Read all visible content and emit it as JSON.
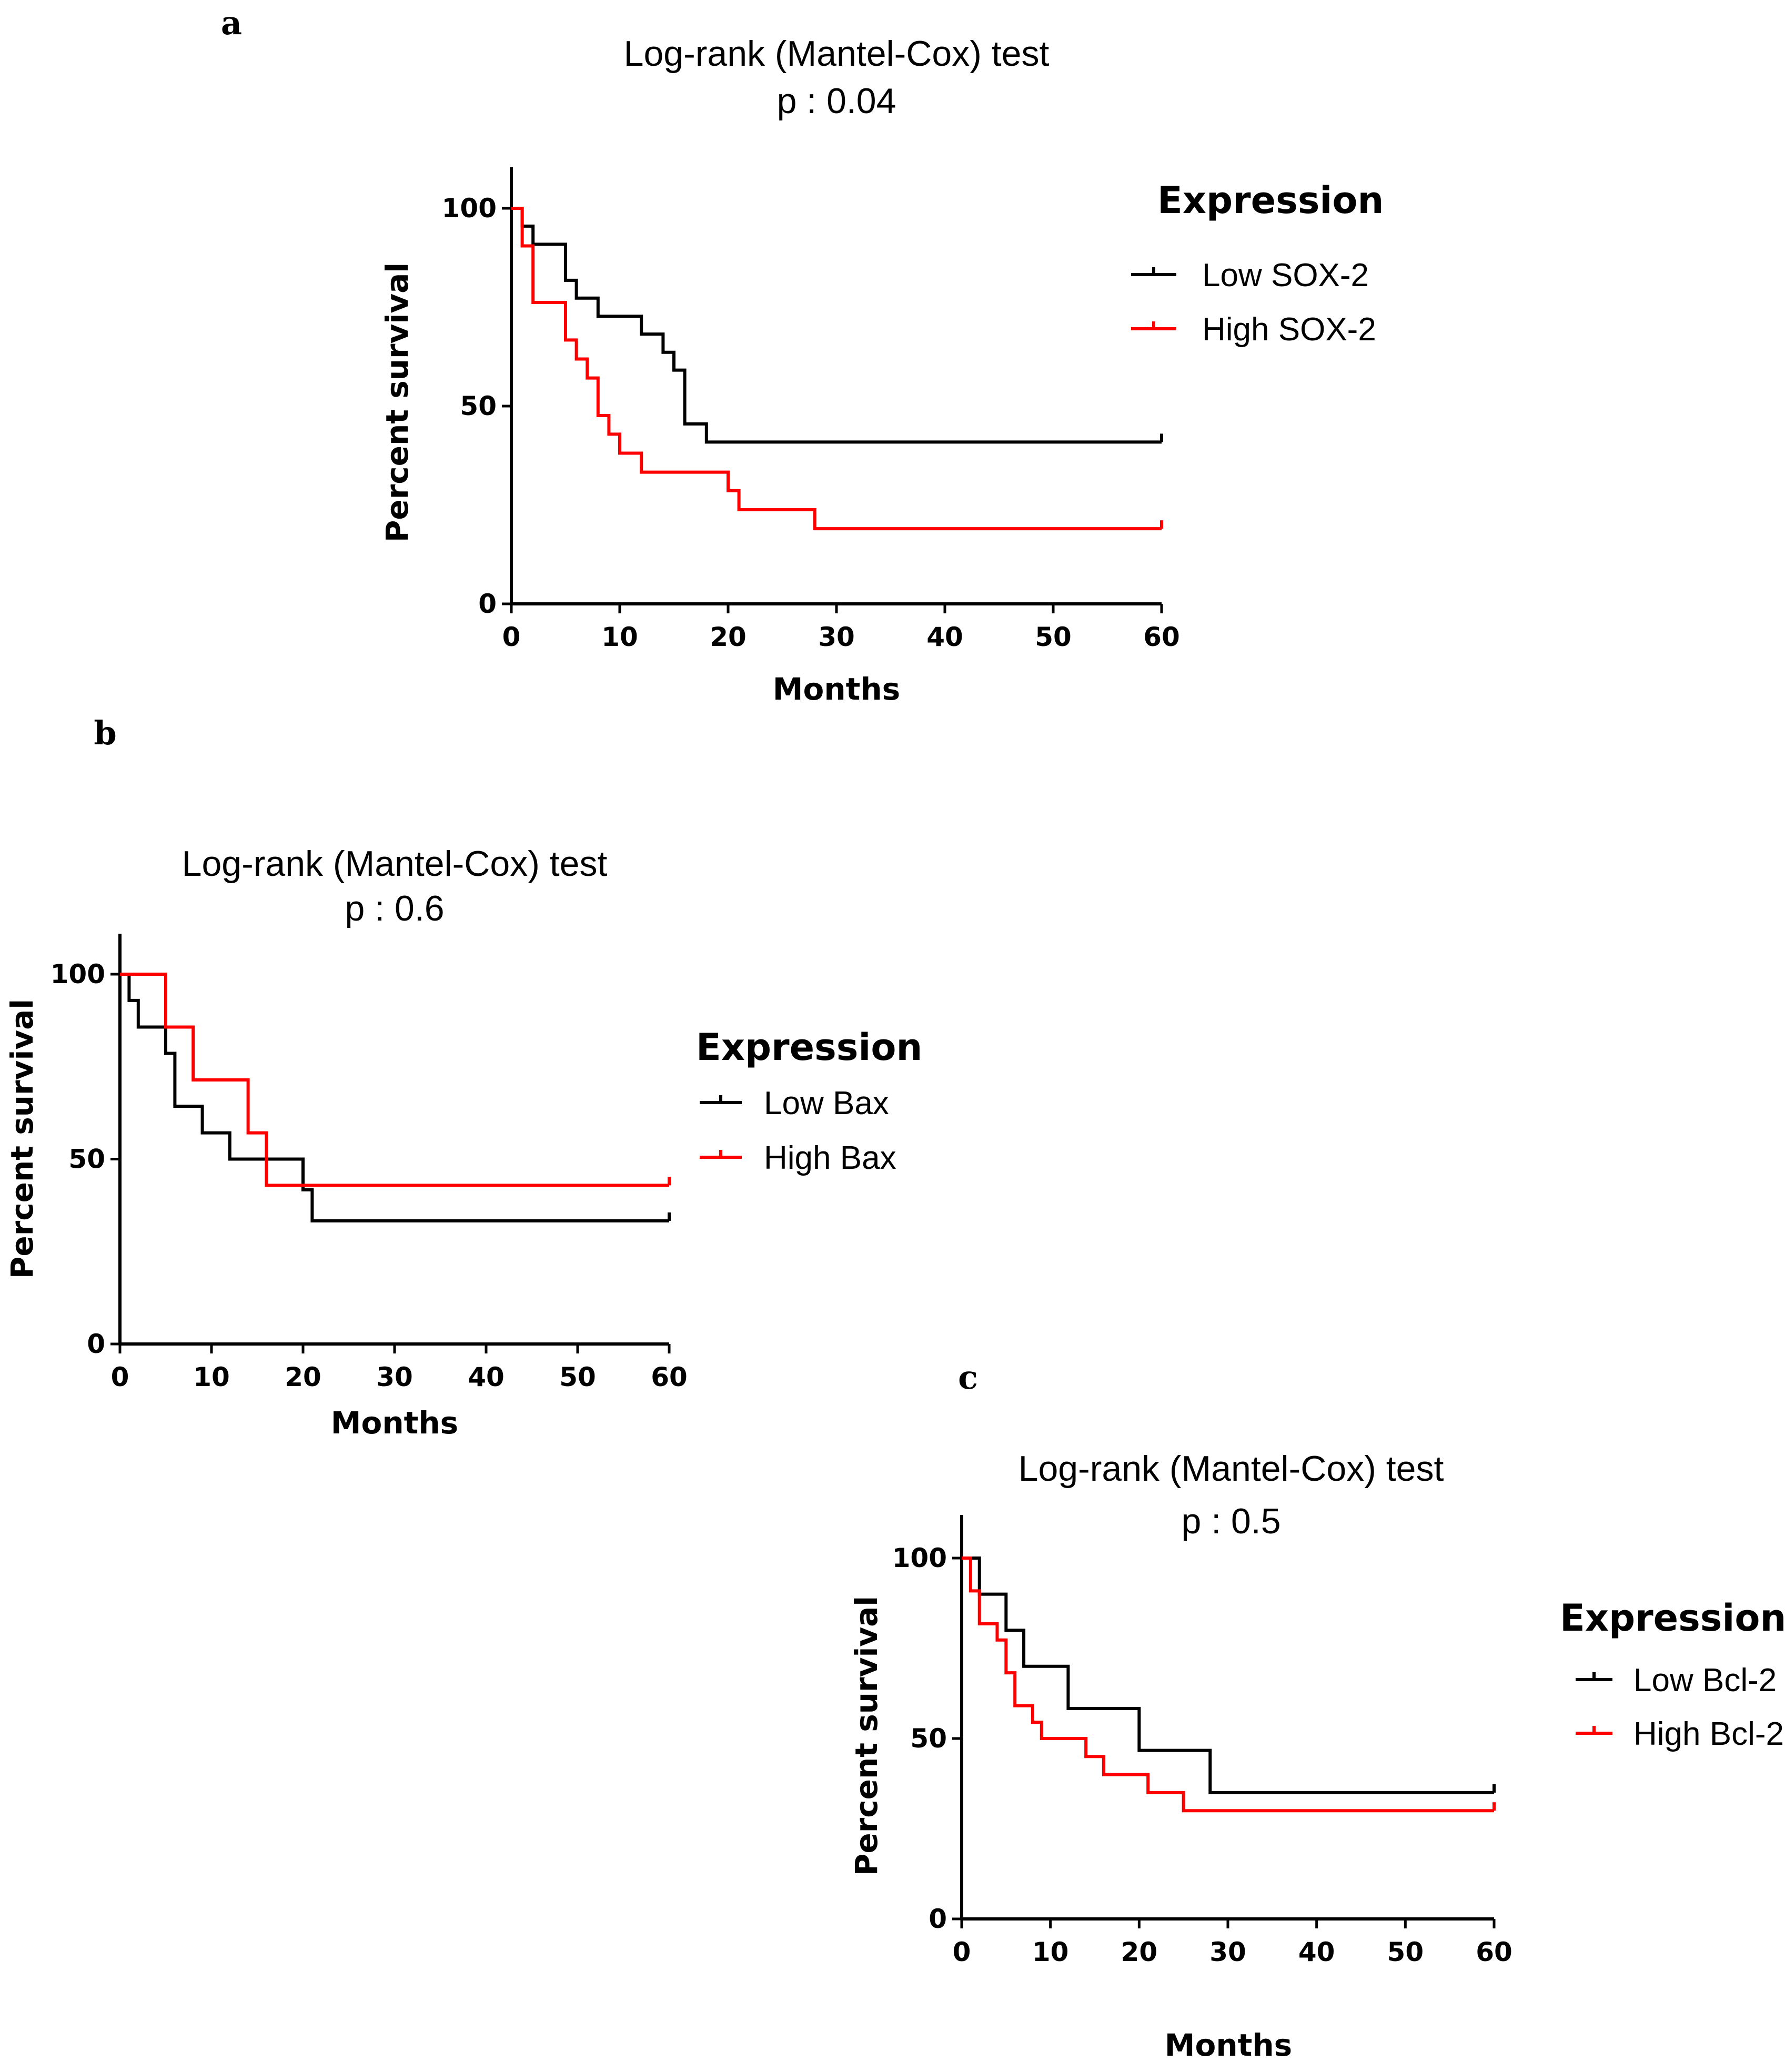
{
  "panels": [
    {
      "letter": "a",
      "title": "Log-rank (Mantel-Cox) test",
      "p_value": "p : 0.04",
      "legend_title": "Expression"
    },
    {
      "letter": "b",
      "title": "Log-rank (Mantel-Cox) test",
      "p_value": "p : 0.6",
      "legend_title": "Expression"
    },
    {
      "letter": "c",
      "title": "Log-rank (Mantel-Cox) test",
      "p_value": "p : 0.5",
      "legend_title": "Expression"
    }
  ],
  "colors": {
    "low": "#000000",
    "high": "#ff0000",
    "axis": "#000000"
  },
  "chart_data": [
    {
      "type": "line",
      "subtype": "kaplan-meier",
      "title": "Log-rank (Mantel-Cox) test",
      "subtitle": "p : 0.04",
      "xlabel": "Months",
      "ylabel": "Percent survival",
      "xlim": [
        0,
        60
      ],
      "ylim": [
        0,
        110
      ],
      "xticks": [
        "0",
        "10",
        "20",
        "30",
        "40",
        "50",
        "60"
      ],
      "yticks": [
        "0",
        "50",
        "100"
      ],
      "xtick_values": [
        0,
        10,
        20,
        30,
        40,
        50,
        60
      ],
      "ytick_values": [
        0,
        50,
        100
      ],
      "legend_title": "Expression",
      "legend_position": "right",
      "series": [
        {
          "name": "Low SOX-2",
          "color_key": "low",
          "steps": [
            [
              0,
              100
            ],
            [
              1,
              95.5
            ],
            [
              2,
              90.9
            ],
            [
              5,
              81.8
            ],
            [
              6,
              77.3
            ],
            [
              8,
              72.7
            ],
            [
              12,
              68.2
            ],
            [
              14,
              63.6
            ],
            [
              15,
              59.1
            ],
            [
              16,
              45.5
            ],
            [
              18,
              40.9
            ],
            [
              60,
              40.9
            ]
          ]
        },
        {
          "name": "High SOX-2",
          "color_key": "high",
          "steps": [
            [
              0,
              100
            ],
            [
              1,
              90.5
            ],
            [
              2,
              76.2
            ],
            [
              5,
              66.7
            ],
            [
              6,
              61.9
            ],
            [
              7,
              57.1
            ],
            [
              8,
              47.6
            ],
            [
              9,
              42.9
            ],
            [
              10,
              38.1
            ],
            [
              12,
              33.3
            ],
            [
              20,
              28.6
            ],
            [
              21,
              23.8
            ],
            [
              28,
              19.0
            ],
            [
              60,
              19.0
            ]
          ]
        }
      ]
    },
    {
      "type": "line",
      "subtype": "kaplan-meier",
      "title": "Log-rank (Mantel-Cox) test",
      "subtitle": "p : 0.6",
      "xlabel": "Months",
      "ylabel": "Percent survival",
      "xlim": [
        0,
        60
      ],
      "ylim": [
        0,
        110
      ],
      "xticks": [
        "0",
        "10",
        "20",
        "30",
        "40",
        "50",
        "60"
      ],
      "yticks": [
        "0",
        "50",
        "100"
      ],
      "xtick_values": [
        0,
        10,
        20,
        30,
        40,
        50,
        60
      ],
      "ytick_values": [
        0,
        50,
        100
      ],
      "legend_title": "Expression",
      "legend_position": "right",
      "series": [
        {
          "name": "Low Bax",
          "color_key": "low",
          "steps": [
            [
              0,
              100
            ],
            [
              1,
              92.9
            ],
            [
              2,
              85.7
            ],
            [
              5,
              78.6
            ],
            [
              6,
              64.3
            ],
            [
              9,
              57.1
            ],
            [
              12,
              50
            ],
            [
              20,
              41.7
            ],
            [
              21,
              33.3
            ],
            [
              60,
              33.3
            ]
          ]
        },
        {
          "name": "High Bax",
          "color_key": "high",
          "steps": [
            [
              0,
              100
            ],
            [
              5,
              85.7
            ],
            [
              8,
              71.4
            ],
            [
              14,
              57.1
            ],
            [
              16,
              42.9
            ],
            [
              60,
              42.9
            ]
          ]
        }
      ]
    },
    {
      "type": "line",
      "subtype": "kaplan-meier",
      "title": "Log-rank (Mantel-Cox) test",
      "subtitle": "p : 0.5",
      "xlabel": "Months",
      "ylabel": "Percent survival",
      "xlim": [
        0,
        60
      ],
      "ylim": [
        0,
        110
      ],
      "xticks": [
        "0",
        "10",
        "20",
        "30",
        "40",
        "50",
        "60"
      ],
      "yticks": [
        "0",
        "50",
        "100"
      ],
      "xtick_values": [
        0,
        10,
        20,
        30,
        40,
        50,
        60
      ],
      "ytick_values": [
        0,
        50,
        100
      ],
      "legend_title": "Expression",
      "legend_position": "right",
      "series": [
        {
          "name": "Low Bcl-2",
          "color_key": "low",
          "steps": [
            [
              0,
              100
            ],
            [
              2,
              90
            ],
            [
              5,
              80
            ],
            [
              7,
              70
            ],
            [
              12,
              58.3
            ],
            [
              20,
              46.7
            ],
            [
              28,
              35
            ],
            [
              60,
              35
            ]
          ]
        },
        {
          "name": "High Bcl-2",
          "color_key": "high",
          "steps": [
            [
              0,
              100
            ],
            [
              1,
              90.9
            ],
            [
              2,
              81.8
            ],
            [
              4,
              77.3
            ],
            [
              5,
              68.2
            ],
            [
              6,
              59.1
            ],
            [
              8,
              54.5
            ],
            [
              9,
              50
            ],
            [
              14,
              45
            ],
            [
              16,
              40
            ],
            [
              21,
              35
            ],
            [
              25,
              30
            ],
            [
              60,
              30
            ]
          ]
        }
      ]
    }
  ]
}
